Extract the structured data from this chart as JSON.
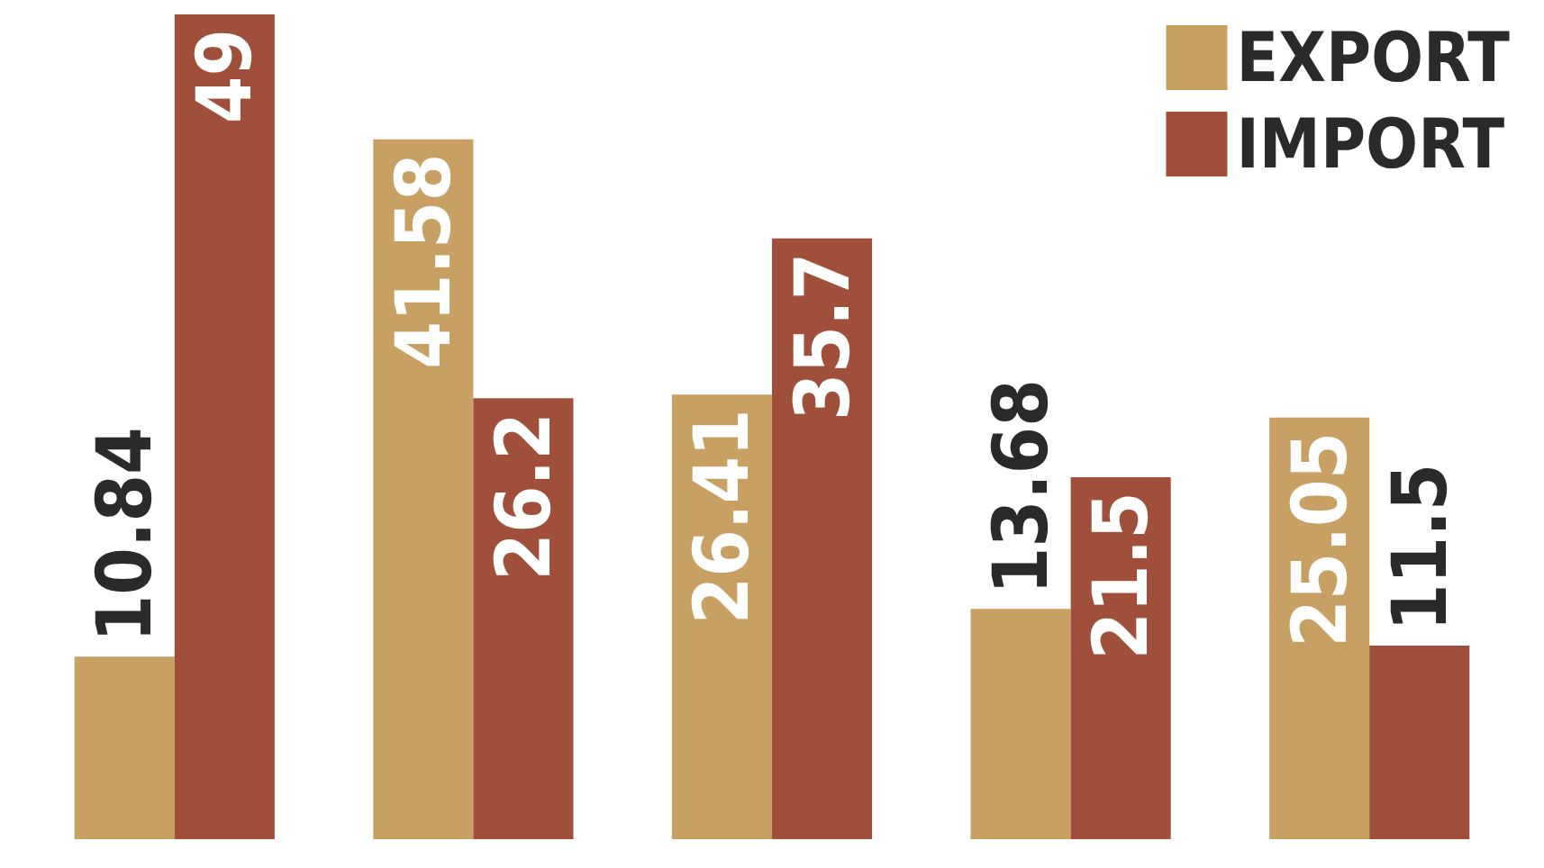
{
  "chart_data": {
    "type": "bar",
    "categories": [
      null,
      null,
      null,
      null,
      null
    ],
    "series": [
      {
        "name": "EXPORT",
        "color": "#c9a064",
        "values": [
          10.84,
          41.58,
          26.41,
          13.68,
          25.05
        ]
      },
      {
        "name": "IMPORT",
        "color": "#a0503a",
        "values": [
          49,
          26.2,
          35.7,
          21.5,
          11.5
        ]
      }
    ],
    "data_labels": true,
    "legend": "top right"
  }
}
